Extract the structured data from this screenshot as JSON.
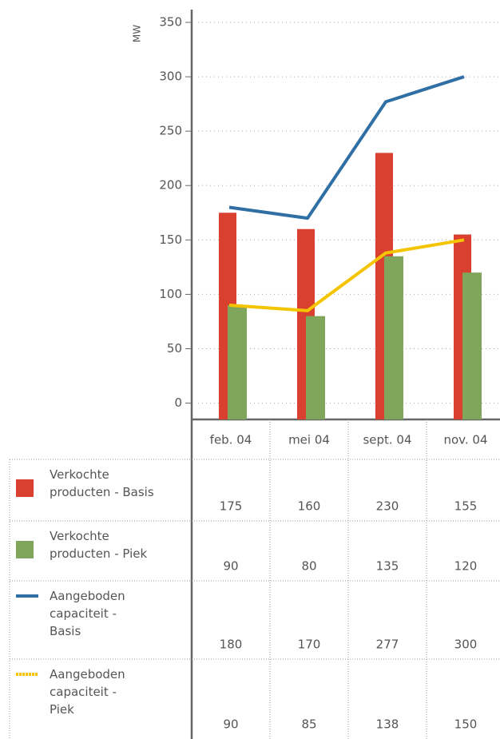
{
  "chart_data": {
    "type": "bar",
    "y_label": "MW",
    "categories": [
      "feb. 04",
      "mei 04",
      "sept. 04",
      "nov. 04"
    ],
    "series": [
      {
        "name": "Verkochte producten - Basis",
        "type": "bar",
        "color": "#d9402f",
        "values": [
          175,
          160,
          230,
          155
        ]
      },
      {
        "name": "Verkochte producten - Piek",
        "type": "bar",
        "color": "#7fa65a",
        "values": [
          90,
          80,
          135,
          120
        ]
      },
      {
        "name": "Aangeboden capaciteit - Basis",
        "type": "line",
        "color": "#2f6fa3",
        "values": [
          180,
          170,
          277,
          300
        ]
      },
      {
        "name": "Aangeboden capaciteit - Piek",
        "type": "line",
        "color": "#f5c400",
        "values": [
          90,
          85,
          138,
          150
        ]
      }
    ],
    "ylim": [
      -15,
      350
    ],
    "yticks": [
      0,
      50,
      100,
      150,
      200,
      250,
      300,
      350
    ],
    "grid": true
  }
}
